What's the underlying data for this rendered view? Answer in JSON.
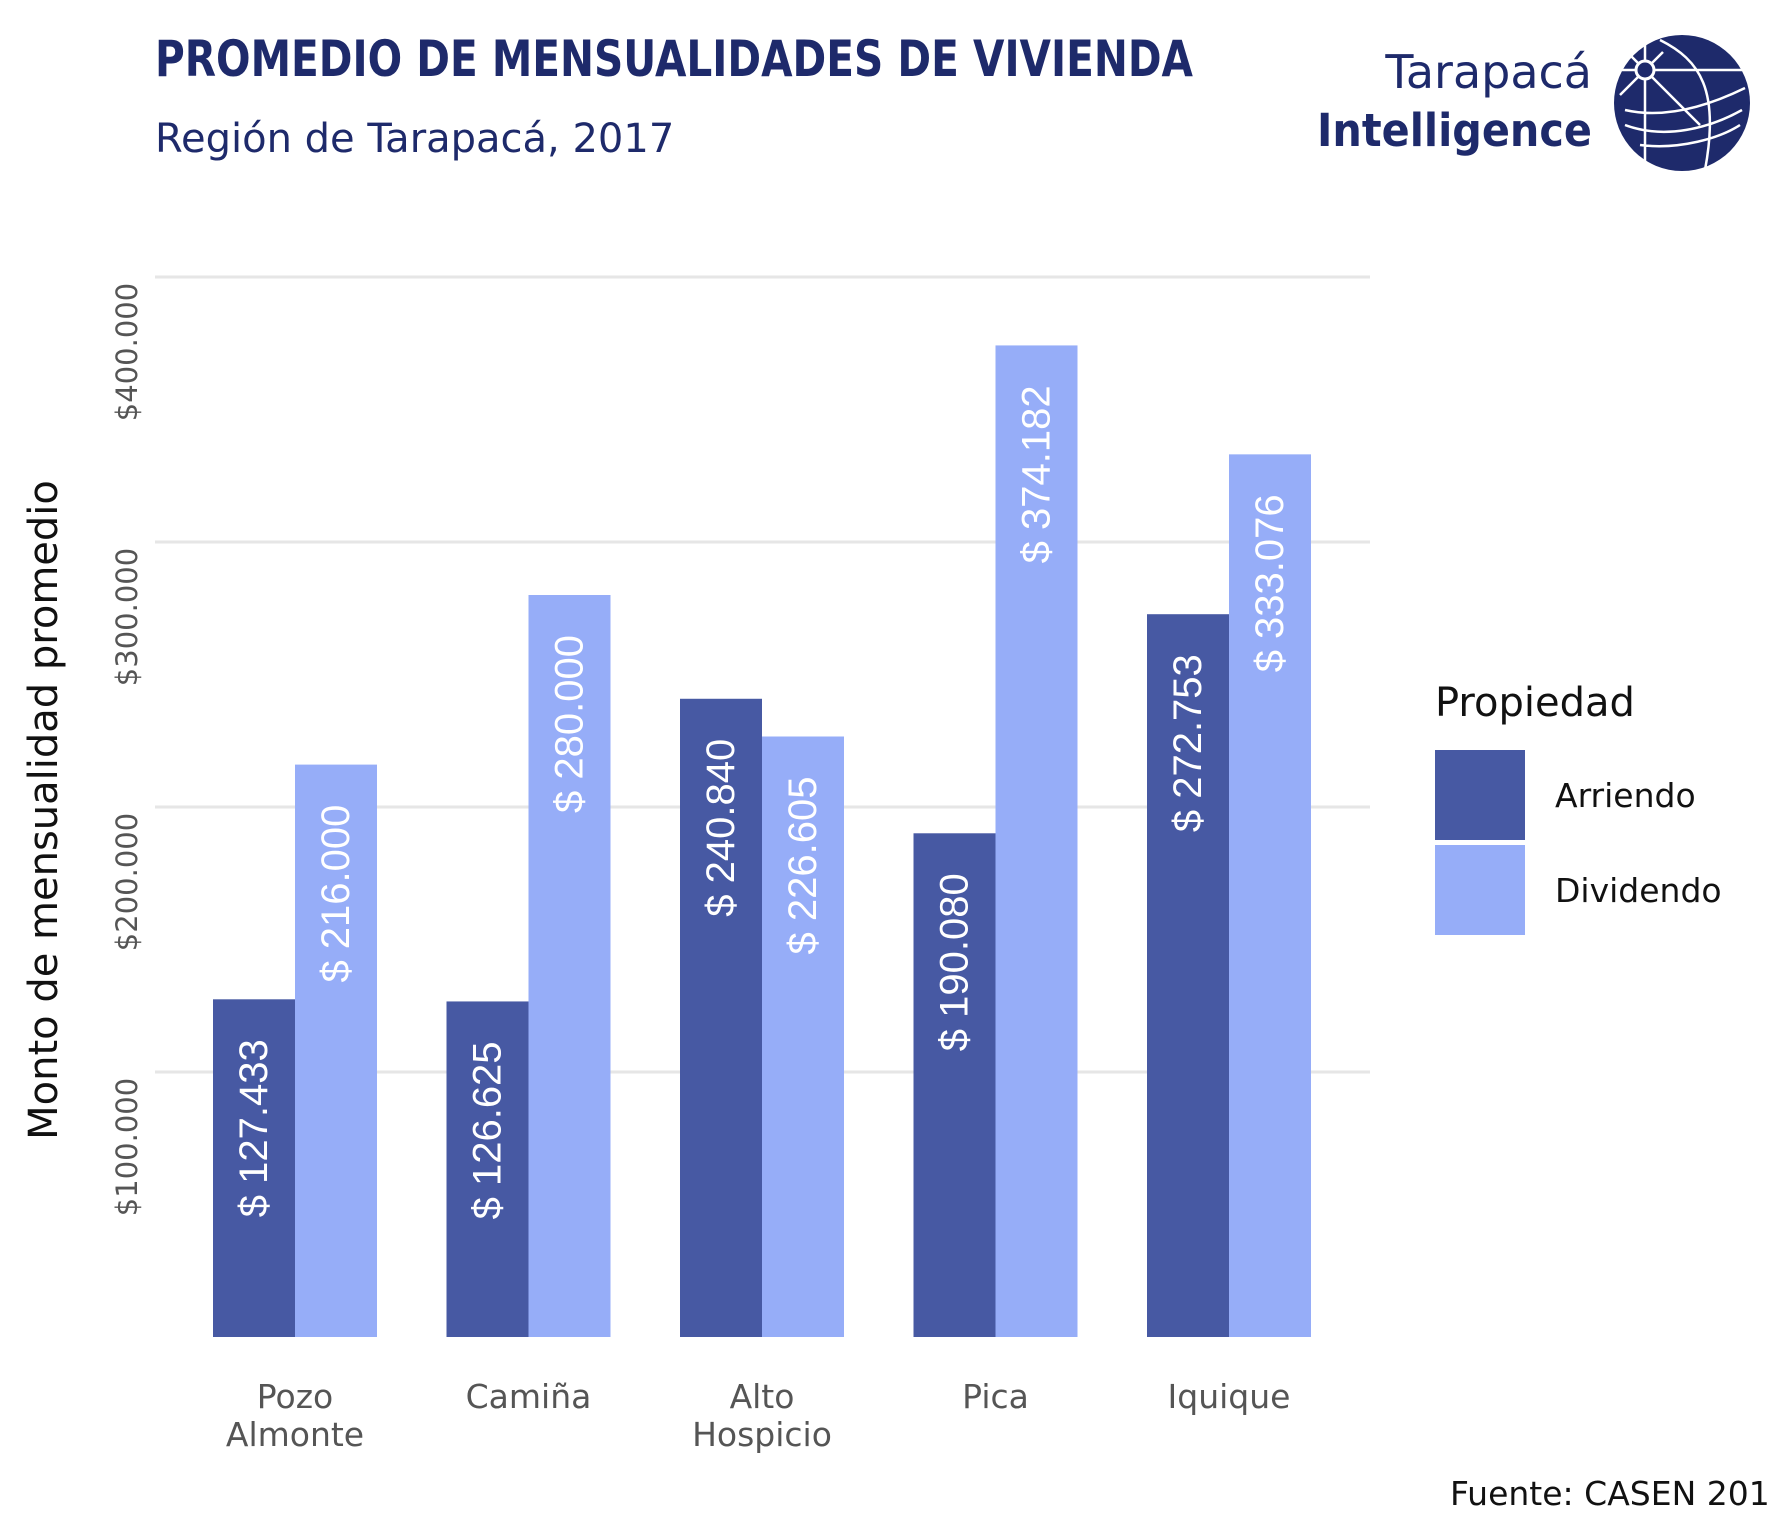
{
  "header": {
    "title": "PROMEDIO DE MENSUALIDADES DE VIVIENDA",
    "subtitle": "Región de Tarapacá, 2017"
  },
  "brand": {
    "line1": "Tarapacá",
    "line2": "Intelligence",
    "logo_icon": "globe-logo-icon",
    "color": "#1e2a6b"
  },
  "source": "Fuente: CASEN 201",
  "chart_data": {
    "type": "bar",
    "title": "PROMEDIO DE MENSUALIDADES DE VIVIENDA",
    "subtitle": "Región de Tarapacá, 2017",
    "xlabel": "",
    "ylabel": "Monto de mensualidad promedio",
    "ylim": [
      0,
      400000
    ],
    "yticks": [
      100000,
      200000,
      300000,
      400000
    ],
    "ytick_labels": [
      "$100.000",
      "$200.000",
      "$300.000",
      "$400.000"
    ],
    "grid": true,
    "categories": [
      [
        "Pozo",
        "Almonte"
      ],
      [
        "Camiña"
      ],
      [
        "Alto",
        "Hospicio"
      ],
      [
        "Pica"
      ],
      [
        "Iquique"
      ]
    ],
    "series": [
      {
        "name": "Arriendo",
        "color": "#4759a3",
        "values": [
          127433,
          126625,
          240840,
          190080,
          272753
        ],
        "labels": [
          "$ 127.433",
          "$ 126.625",
          "$ 240.840",
          "$ 190.080",
          "$ 272.753"
        ]
      },
      {
        "name": "Dividendo",
        "color": "#96adf8",
        "values": [
          216000,
          280000,
          226605,
          374182,
          333076
        ],
        "labels": [
          "$ 216.000",
          "$ 280.000",
          "$ 226.605",
          "$ 374.182",
          "$ 333.076"
        ]
      }
    ],
    "legend": {
      "title": "Propiedad",
      "placement": "right"
    }
  }
}
